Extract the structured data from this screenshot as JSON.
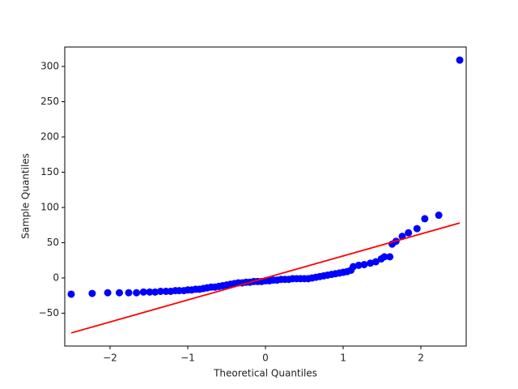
{
  "chart_data": {
    "type": "scatter",
    "xlabel": "Theoretical Quantiles",
    "ylabel": "Sample Quantiles",
    "xlim": [
      -2.583,
      2.583
    ],
    "ylim": [
      -96.6,
      327.6
    ],
    "xticks": [
      {
        "value": -2,
        "label": "−2"
      },
      {
        "value": -1,
        "label": "−1"
      },
      0,
      1,
      2
    ],
    "yticks": [
      {
        "value": -50,
        "label": "−50"
      },
      0,
      50,
      100,
      150,
      200,
      250,
      300
    ],
    "series": [
      {
        "color": "#0000ff",
        "x": [
          -2.5,
          -2.23,
          -2.03,
          -1.88,
          -1.76,
          -1.66,
          -1.57,
          -1.49,
          -1.42,
          -1.35,
          -1.28,
          -1.22,
          -1.16,
          -1.11,
          -1.05,
          -1.0,
          -0.95,
          -0.9,
          -0.85,
          -0.8,
          -0.75,
          -0.7,
          -0.65,
          -0.6,
          -0.55,
          -0.5,
          -0.45,
          -0.4,
          -0.35,
          -0.3,
          -0.25,
          -0.2,
          -0.15,
          -0.1,
          -0.05,
          0,
          0.05,
          0.1,
          0.15,
          0.2,
          0.25,
          0.3,
          0.35,
          0.4,
          0.45,
          0.5,
          0.55,
          0.6,
          0.65,
          0.7,
          0.75,
          0.8,
          0.85,
          0.9,
          0.95,
          1.0,
          1.05,
          1.1,
          1.13,
          1.2,
          1.27,
          1.35,
          1.42,
          1.49,
          1.53,
          1.6,
          1.63,
          1.68,
          1.76,
          1.84,
          1.95,
          2.05,
          2.23,
          2.5
        ],
        "values": [
          -23,
          -22,
          -21,
          -21,
          -21,
          -21,
          -20,
          -20,
          -20,
          -19,
          -19,
          -19,
          -18,
          -18,
          -18,
          -17,
          -17,
          -16,
          -16,
          -15,
          -14,
          -13,
          -13,
          -12,
          -11,
          -10,
          -9,
          -8,
          -7,
          -7,
          -6,
          -6,
          -5,
          -5,
          -5,
          -4,
          -4,
          -3,
          -3,
          -2,
          -2,
          -2,
          -1,
          -1,
          -1,
          -1,
          -1,
          0,
          1,
          2,
          3,
          4,
          5,
          6,
          7,
          8,
          9,
          11,
          16,
          18,
          19,
          21,
          23,
          27,
          30,
          30,
          48,
          52,
          59,
          64,
          70,
          84,
          89,
          309
        ]
      }
    ],
    "reference_line": {
      "color": "#ff0000",
      "x": [
        -2.5,
        2.5
      ],
      "values": [
        -78,
        78
      ]
    }
  }
}
